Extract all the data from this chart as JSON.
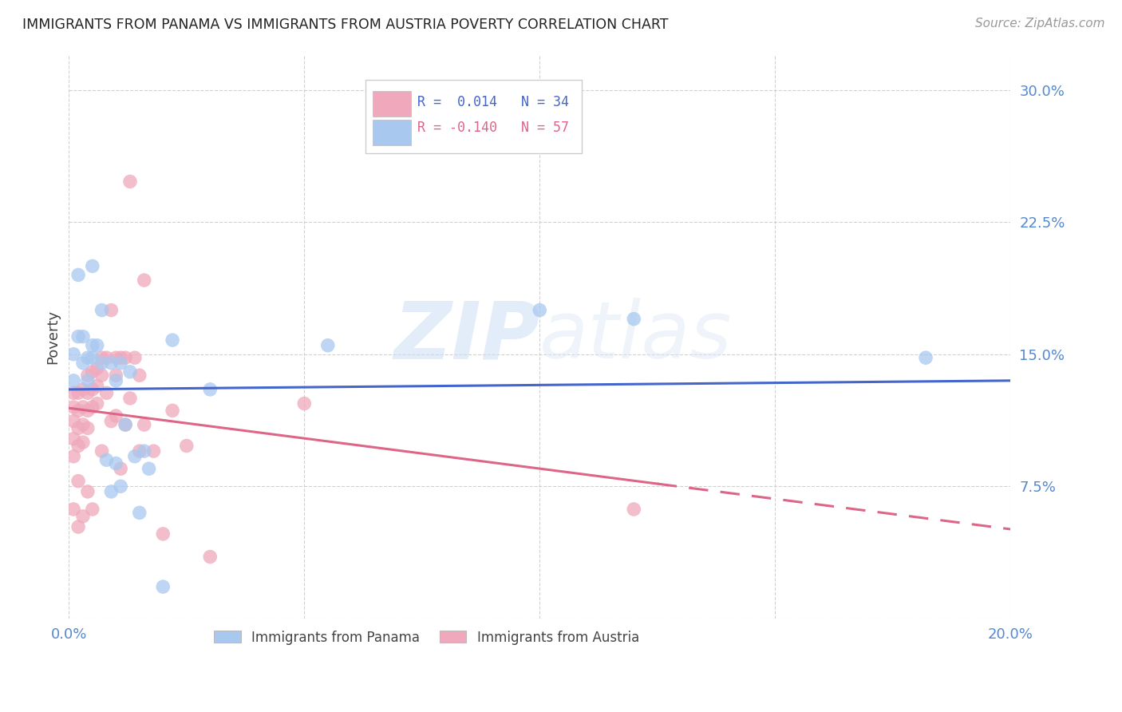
{
  "title": "IMMIGRANTS FROM PANAMA VS IMMIGRANTS FROM AUSTRIA POVERTY CORRELATION CHART",
  "source": "Source: ZipAtlas.com",
  "ylabel": "Poverty",
  "xlim": [
    0.0,
    0.2
  ],
  "ylim": [
    0.0,
    0.32
  ],
  "xticks": [
    0.0,
    0.05,
    0.1,
    0.15,
    0.2
  ],
  "yticks": [
    0.0,
    0.075,
    0.15,
    0.225,
    0.3
  ],
  "color_panama": "#a8c8f0",
  "color_austria": "#f0a8bc",
  "color_line_panama": "#4466cc",
  "color_line_austria": "#dd6688",
  "watermark_zip": "ZIP",
  "watermark_atlas": "atlas",
  "panama_x": [
    0.001,
    0.001,
    0.002,
    0.002,
    0.003,
    0.003,
    0.004,
    0.004,
    0.005,
    0.005,
    0.005,
    0.006,
    0.007,
    0.007,
    0.008,
    0.009,
    0.009,
    0.01,
    0.01,
    0.011,
    0.011,
    0.012,
    0.013,
    0.014,
    0.015,
    0.016,
    0.017,
    0.02,
    0.022,
    0.03,
    0.055,
    0.1,
    0.12,
    0.182
  ],
  "panama_y": [
    0.135,
    0.15,
    0.16,
    0.195,
    0.145,
    0.16,
    0.135,
    0.148,
    0.148,
    0.155,
    0.2,
    0.155,
    0.175,
    0.145,
    0.09,
    0.072,
    0.145,
    0.135,
    0.088,
    0.145,
    0.075,
    0.11,
    0.14,
    0.092,
    0.06,
    0.095,
    0.085,
    0.018,
    0.158,
    0.13,
    0.155,
    0.175,
    0.17,
    0.148
  ],
  "austria_x": [
    0.001,
    0.001,
    0.001,
    0.001,
    0.001,
    0.001,
    0.002,
    0.002,
    0.002,
    0.002,
    0.002,
    0.002,
    0.003,
    0.003,
    0.003,
    0.003,
    0.003,
    0.004,
    0.004,
    0.004,
    0.004,
    0.004,
    0.005,
    0.005,
    0.005,
    0.005,
    0.006,
    0.006,
    0.006,
    0.007,
    0.007,
    0.007,
    0.008,
    0.008,
    0.009,
    0.009,
    0.01,
    0.01,
    0.01,
    0.011,
    0.011,
    0.012,
    0.012,
    0.013,
    0.013,
    0.014,
    0.015,
    0.015,
    0.016,
    0.016,
    0.018,
    0.02,
    0.022,
    0.025,
    0.03,
    0.05,
    0.12
  ],
  "austria_y": [
    0.128,
    0.12,
    0.112,
    0.102,
    0.092,
    0.062,
    0.128,
    0.118,
    0.108,
    0.098,
    0.078,
    0.052,
    0.13,
    0.12,
    0.11,
    0.1,
    0.058,
    0.138,
    0.128,
    0.118,
    0.108,
    0.072,
    0.14,
    0.13,
    0.12,
    0.062,
    0.142,
    0.132,
    0.122,
    0.148,
    0.138,
    0.095,
    0.148,
    0.128,
    0.175,
    0.112,
    0.148,
    0.138,
    0.115,
    0.148,
    0.085,
    0.148,
    0.11,
    0.248,
    0.125,
    0.148,
    0.138,
    0.095,
    0.192,
    0.11,
    0.095,
    0.048,
    0.118,
    0.098,
    0.035,
    0.122,
    0.062
  ],
  "background_color": "#ffffff",
  "grid_color": "#cccccc",
  "tick_label_color": "#5588cc",
  "axis_label_color": "#444444",
  "title_color": "#222222"
}
